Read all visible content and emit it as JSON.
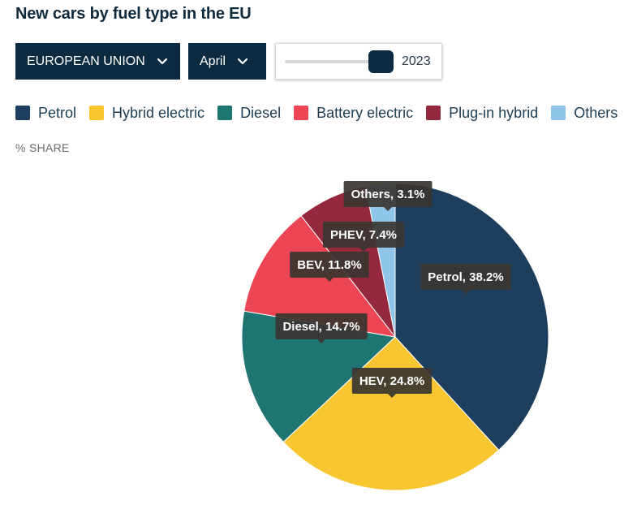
{
  "title": "New cars by fuel type in the EU",
  "controls": {
    "region_label": "EUROPEAN UNION",
    "month_label": "April",
    "year_label": "2023",
    "year_slider_position": 0.88
  },
  "legend": [
    {
      "label": "Petrol",
      "color": "#1d3e5c"
    },
    {
      "label": "Hybrid electric",
      "color": "#f8c630"
    },
    {
      "label": "Diesel",
      "color": "#1e7572"
    },
    {
      "label": "Battery electric",
      "color": "#ec4553"
    },
    {
      "label": "Plug-in hybrid",
      "color": "#94283d"
    },
    {
      "label": "Others",
      "color": "#8ec5e8"
    }
  ],
  "unit_label": "% SHARE",
  "colors": {
    "control_bg": "#0c2b40",
    "tooltip_bg": "#3a3531"
  },
  "chart_data": {
    "type": "pie",
    "title": "New cars by fuel type in the EU",
    "unit": "% SHARE",
    "slices": [
      {
        "name": "Petrol",
        "short": "Petrol",
        "value": 38.2,
        "color": "#1d3e5c",
        "label": "Petrol, 38.2%"
      },
      {
        "name": "Hybrid electric",
        "short": "HEV",
        "value": 24.8,
        "color": "#f8c630",
        "label": "HEV, 24.8%"
      },
      {
        "name": "Diesel",
        "short": "Diesel",
        "value": 14.7,
        "color": "#1e7572",
        "label": "Diesel, 14.7%"
      },
      {
        "name": "Battery electric",
        "short": "BEV",
        "value": 11.8,
        "color": "#ec4553",
        "label": "BEV, 11.8%"
      },
      {
        "name": "Plug-in hybrid",
        "short": "PHEV",
        "value": 7.4,
        "color": "#94283d",
        "label": "PHEV, 7.4%"
      },
      {
        "name": "Others",
        "short": "Others",
        "value": 3.1,
        "color": "#8ec5e8",
        "label": "Others, 3.1%"
      }
    ]
  }
}
